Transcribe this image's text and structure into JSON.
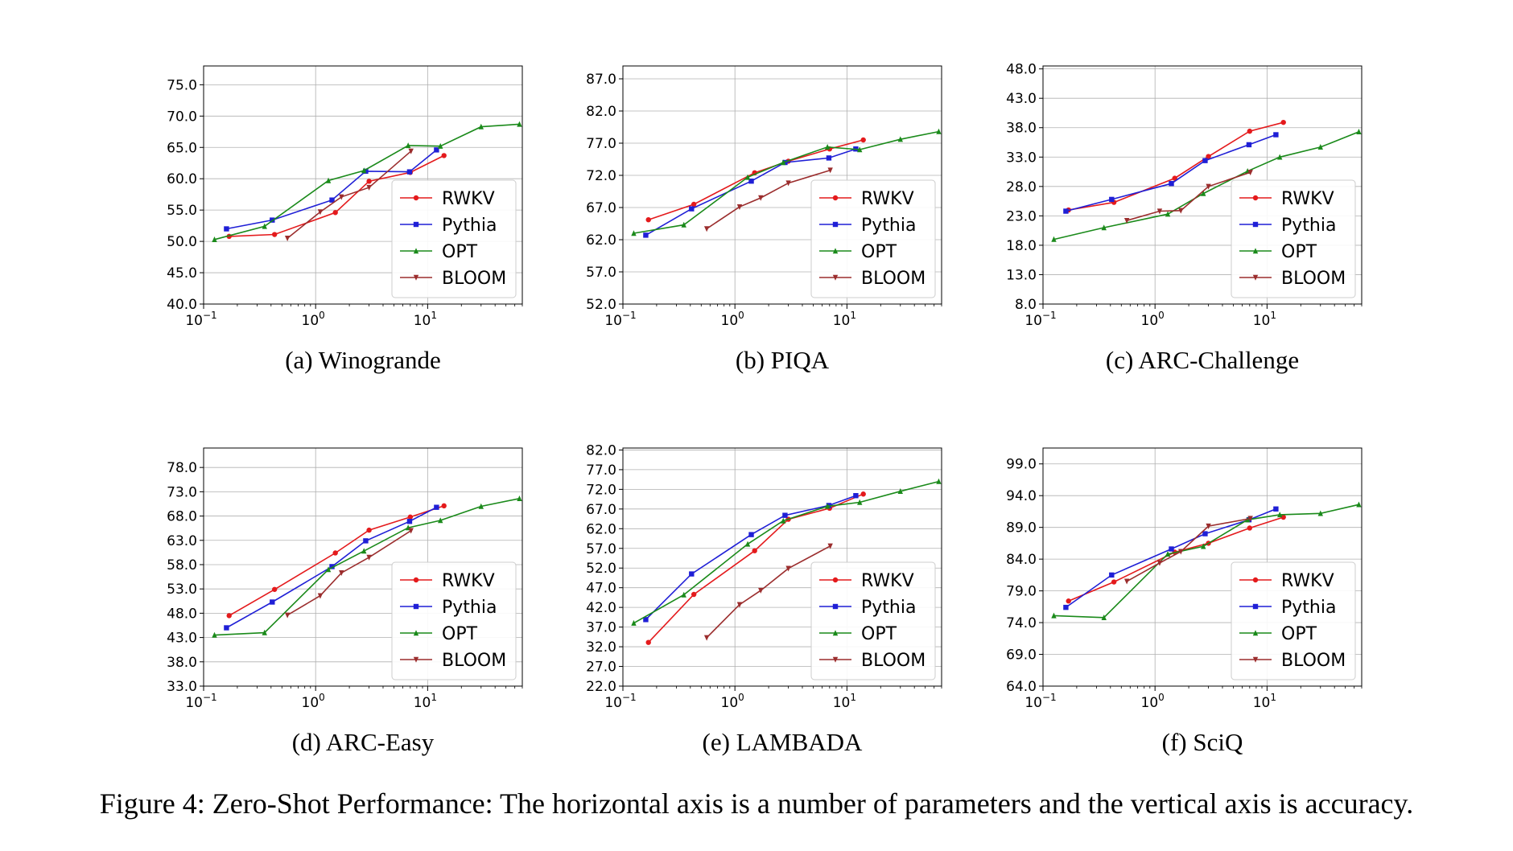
{
  "caption": "Figure 4: Zero-Shot Performance: The horizontal axis is a number of parameters and the vertical axis is accuracy.",
  "colors": {
    "RWKV": "#e41a1c",
    "Pythia": "#1f1fd6",
    "OPT": "#1a8a1a",
    "BLOOM": "#9b2d2d"
  },
  "chart_data": [
    {
      "type": "line",
      "title": "(a) Winogrande",
      "xscale": "log",
      "xlim": [
        0.1,
        70
      ],
      "ylim": [
        40.0,
        78.0
      ],
      "yticks": [
        40.0,
        45.0,
        50.0,
        55.0,
        60.0,
        65.0,
        70.0,
        75.0
      ],
      "grid": true,
      "legend": "lower-right",
      "series": [
        {
          "name": "RWKV",
          "x": [
            0.169,
            0.43,
            1.5,
            3.0,
            7.0,
            14.0
          ],
          "y": [
            50.8,
            51.1,
            54.6,
            59.6,
            61.0,
            63.7
          ]
        },
        {
          "name": "Pythia",
          "x": [
            0.16,
            0.41,
            1.4,
            2.8,
            6.9,
            12.0
          ],
          "y": [
            52.0,
            53.4,
            56.6,
            61.2,
            61.1,
            64.6
          ]
        },
        {
          "name": "OPT",
          "x": [
            0.125,
            0.35,
            1.3,
            2.7,
            6.7,
            13.0,
            30.0,
            66.0
          ],
          "y": [
            50.3,
            52.4,
            59.7,
            61.3,
            65.3,
            65.2,
            68.3,
            68.7
          ]
        },
        {
          "name": "BLOOM",
          "x": [
            0.56,
            1.1,
            1.7,
            3.0,
            7.1
          ],
          "y": [
            50.5,
            54.7,
            57.1,
            58.6,
            64.4
          ]
        }
      ]
    },
    {
      "type": "line",
      "title": "(b) PIQA",
      "xscale": "log",
      "xlim": [
        0.1,
        70
      ],
      "ylim": [
        52.0,
        89.0
      ],
      "yticks": [
        52.0,
        57.0,
        62.0,
        67.0,
        72.0,
        77.0,
        82.0,
        87.0
      ],
      "grid": true,
      "legend": "lower-right",
      "series": [
        {
          "name": "RWKV",
          "x": [
            0.169,
            0.43,
            1.5,
            3.0,
            7.0,
            14.0
          ],
          "y": [
            65.1,
            67.5,
            72.4,
            74.2,
            76.1,
            77.5
          ]
        },
        {
          "name": "Pythia",
          "x": [
            0.16,
            0.41,
            1.4,
            2.8,
            6.9,
            12.0
          ],
          "y": [
            62.7,
            66.8,
            71.1,
            74.0,
            74.7,
            76.1
          ]
        },
        {
          "name": "OPT",
          "x": [
            0.125,
            0.35,
            1.3,
            2.7,
            6.7,
            13.0,
            30.0,
            66.0
          ],
          "y": [
            63.0,
            64.3,
            71.7,
            74.0,
            76.4,
            76.0,
            77.6,
            78.8
          ]
        },
        {
          "name": "BLOOM",
          "x": [
            0.56,
            1.1,
            1.7,
            3.0,
            7.1
          ],
          "y": [
            63.7,
            67.1,
            68.5,
            70.8,
            72.8
          ]
        }
      ]
    },
    {
      "type": "line",
      "title": "(c) ARC-Challenge",
      "xscale": "log",
      "xlim": [
        0.1,
        70
      ],
      "ylim": [
        8.0,
        48.5
      ],
      "yticks": [
        8.0,
        13.0,
        18.0,
        23.0,
        28.0,
        33.0,
        38.0,
        43.0,
        48.0
      ],
      "grid": true,
      "legend": "lower-right",
      "series": [
        {
          "name": "RWKV",
          "x": [
            0.169,
            0.43,
            1.5,
            3.0,
            7.0,
            14.0
          ],
          "y": [
            24.0,
            25.3,
            29.4,
            33.1,
            37.4,
            38.9
          ]
        },
        {
          "name": "Pythia",
          "x": [
            0.16,
            0.41,
            1.4,
            2.8,
            6.9,
            12.0
          ],
          "y": [
            23.8,
            25.8,
            28.5,
            32.4,
            35.1,
            36.8
          ]
        },
        {
          "name": "OPT",
          "x": [
            0.125,
            0.35,
            1.3,
            2.7,
            6.7,
            13.0,
            30.0,
            66.0
          ],
          "y": [
            19.0,
            21.0,
            23.3,
            26.8,
            30.6,
            33.0,
            34.7,
            37.3
          ]
        },
        {
          "name": "BLOOM",
          "x": [
            0.56,
            1.1,
            1.7,
            3.0,
            7.1
          ],
          "y": [
            22.2,
            23.8,
            23.9,
            28.0,
            30.4
          ]
        }
      ]
    },
    {
      "type": "line",
      "title": "(d) ARC-Easy",
      "xscale": "log",
      "xlim": [
        0.1,
        70
      ],
      "ylim": [
        33.0,
        82.0
      ],
      "yticks": [
        33.0,
        38.0,
        43.0,
        48.0,
        53.0,
        58.0,
        63.0,
        68.0,
        73.0,
        78.0
      ],
      "grid": true,
      "legend": "lower-right",
      "series": [
        {
          "name": "RWKV",
          "x": [
            0.169,
            0.43,
            1.5,
            3.0,
            7.0,
            14.0
          ],
          "y": [
            47.5,
            52.9,
            60.4,
            65.1,
            67.8,
            70.1
          ]
        },
        {
          "name": "Pythia",
          "x": [
            0.16,
            0.41,
            1.4,
            2.8,
            6.9,
            12.0
          ],
          "y": [
            45.0,
            50.3,
            57.6,
            62.9,
            66.9,
            69.8
          ]
        },
        {
          "name": "OPT",
          "x": [
            0.125,
            0.35,
            1.3,
            2.7,
            6.7,
            13.0,
            30.0,
            66.0
          ],
          "y": [
            43.5,
            44.0,
            57.0,
            60.8,
            65.6,
            67.1,
            70.0,
            71.6
          ]
        },
        {
          "name": "BLOOM",
          "x": [
            0.56,
            1.1,
            1.7,
            3.0,
            7.1
          ],
          "y": [
            47.6,
            51.6,
            56.3,
            59.5,
            65.0
          ]
        }
      ]
    },
    {
      "type": "line",
      "title": "(e) LAMBADA",
      "xscale": "log",
      "xlim": [
        0.1,
        70
      ],
      "ylim": [
        22.0,
        82.5
      ],
      "yticks": [
        22.0,
        27.0,
        32.0,
        37.0,
        42.0,
        47.0,
        52.0,
        57.0,
        62.0,
        67.0,
        72.0,
        77.0,
        82.0
      ],
      "grid": true,
      "legend": "lower-right",
      "series": [
        {
          "name": "RWKV",
          "x": [
            0.169,
            0.43,
            1.5,
            3.0,
            7.0,
            14.0
          ],
          "y": [
            33.1,
            45.3,
            56.4,
            64.4,
            67.2,
            70.8
          ]
        },
        {
          "name": "Pythia",
          "x": [
            0.16,
            0.41,
            1.4,
            2.8,
            6.9,
            12.0
          ],
          "y": [
            38.9,
            50.5,
            60.5,
            65.4,
            67.9,
            70.4
          ]
        },
        {
          "name": "OPT",
          "x": [
            0.125,
            0.35,
            1.3,
            2.7,
            6.7,
            13.0,
            30.0,
            66.0
          ],
          "y": [
            38.0,
            45.2,
            58.1,
            64.0,
            67.7,
            68.7,
            71.5,
            74.0
          ]
        },
        {
          "name": "BLOOM",
          "x": [
            0.56,
            1.1,
            1.7,
            3.0,
            7.1
          ],
          "y": [
            34.3,
            42.7,
            46.3,
            51.9,
            57.6
          ]
        }
      ]
    },
    {
      "type": "line",
      "title": "(f) SciQ",
      "xscale": "log",
      "xlim": [
        0.1,
        70
      ],
      "ylim": [
        64.0,
        101.5
      ],
      "yticks": [
        64.0,
        69.0,
        74.0,
        79.0,
        84.0,
        89.0,
        94.0,
        99.0
      ],
      "grid": true,
      "legend": "lower-right",
      "series": [
        {
          "name": "RWKV",
          "x": [
            0.169,
            0.43,
            1.5,
            3.0,
            7.0,
            14.0
          ],
          "y": [
            77.4,
            80.4,
            85.1,
            86.5,
            88.9,
            90.6
          ]
        },
        {
          "name": "Pythia",
          "x": [
            0.16,
            0.41,
            1.4,
            2.8,
            6.9,
            12.0
          ],
          "y": [
            76.4,
            81.5,
            85.6,
            88.0,
            90.2,
            91.9
          ]
        },
        {
          "name": "OPT",
          "x": [
            0.125,
            0.35,
            1.3,
            2.7,
            6.7,
            13.0,
            30.0,
            66.0
          ],
          "y": [
            75.1,
            74.8,
            84.8,
            86.0,
            90.2,
            91.0,
            91.2,
            92.6
          ]
        },
        {
          "name": "BLOOM",
          "x": [
            0.56,
            1.1,
            1.7,
            3.0,
            7.1
          ],
          "y": [
            80.5,
            83.4,
            85.2,
            89.2,
            90.4
          ]
        }
      ]
    }
  ]
}
